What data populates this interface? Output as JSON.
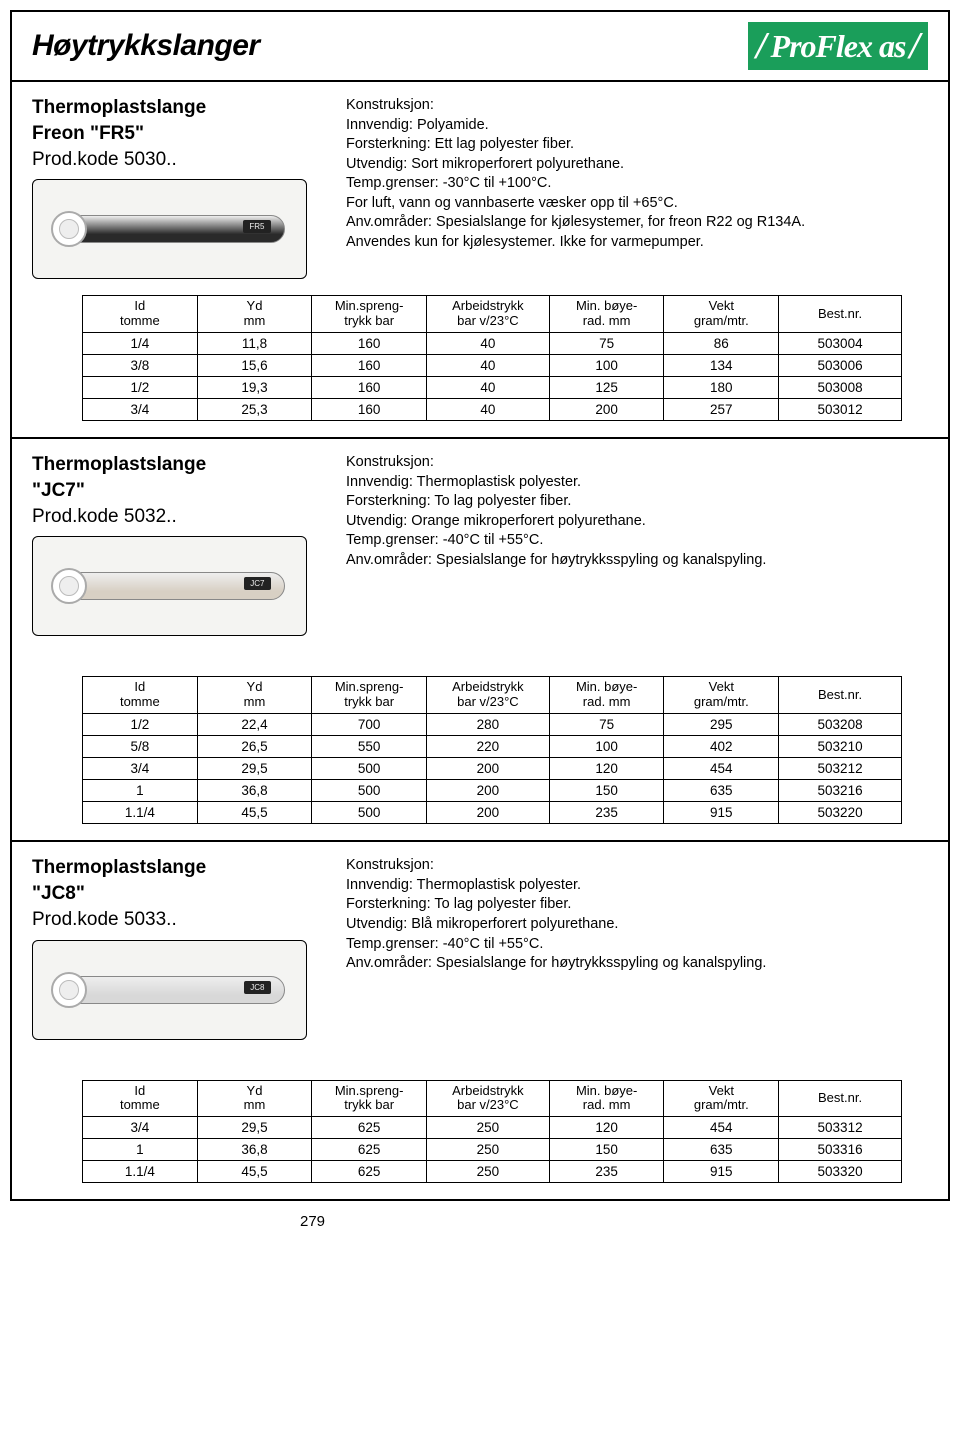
{
  "header": {
    "title": "Høytrykkslanger",
    "logo_text": "ProFlex as"
  },
  "products": [
    {
      "title": "Thermoplastslange",
      "subtitle": "Freon \"FR5\"",
      "code": "Prod.kode 5030..",
      "hose_label": "FR5",
      "hose_color": "#2a2a2a",
      "spec_head": "Konstruksjon:",
      "spec_lines": [
        "Innvendig: Polyamide.",
        "Forsterkning: Ett lag polyester fiber.",
        "Utvendig: Sort mikroperforert polyurethane.",
        "Temp.grenser: -30°C til +100°C.",
        "For luft, vann og vannbaserte væsker opp til +65°C.",
        "Anv.områder:  Spesialslange for kjølesystemer, for freon R22 og R134A.",
        "Anvendes kun for kjølesystemer.  Ikke for varmepumper."
      ],
      "table": {
        "headers": [
          "Id\ntomme",
          "Yd\nmm",
          "Min.spreng-\ntrykk bar",
          "Arbeidstrykk\nbar v/23°C",
          "Min. bøye-\nrad. mm",
          "Vekt\ngram/mtr.",
          "Best.nr."
        ],
        "widths": [
          "14%",
          "14%",
          "14%",
          "15%",
          "14%",
          "14%",
          "15%"
        ],
        "rows": [
          [
            "1/4",
            "11,8",
            "160",
            "40",
            "75",
            "86",
            "503004"
          ],
          [
            "3/8",
            "15,6",
            "160",
            "40",
            "100",
            "134",
            "503006"
          ],
          [
            "1/2",
            "19,3",
            "160",
            "40",
            "125",
            "180",
            "503008"
          ],
          [
            "3/4",
            "25,3",
            "160",
            "40",
            "200",
            "257",
            "503012"
          ]
        ]
      }
    },
    {
      "title": "Thermoplastslange",
      "subtitle": "\"JC7\"",
      "code": "Prod.kode 5032..",
      "hose_label": "JC7",
      "hose_color": "#d8d0c4",
      "spec_head": "Konstruksjon:",
      "spec_lines": [
        "Innvendig: Thermoplastisk polyester.",
        "Forsterkning:  To lag polyester fiber.",
        "Utvendig: Orange mikroperforert polyurethane.",
        "Temp.grenser: -40°C til +55°C.",
        "Anv.områder:  Spesialslange for høytrykksspyling og kanalspyling."
      ],
      "table": {
        "headers": [
          "Id\ntomme",
          "Yd\nmm",
          "Min.spreng-\ntrykk bar",
          "Arbeidstrykk\nbar v/23°C",
          "Min. bøye-\nrad. mm",
          "Vekt\ngram/mtr.",
          "Best.nr."
        ],
        "widths": [
          "14%",
          "14%",
          "14%",
          "15%",
          "14%",
          "14%",
          "15%"
        ],
        "rows": [
          [
            "1/2",
            "22,4",
            "700",
            "280",
            "75",
            "295",
            "503208"
          ],
          [
            "5/8",
            "26,5",
            "550",
            "220",
            "100",
            "402",
            "503210"
          ],
          [
            "3/4",
            "29,5",
            "500",
            "200",
            "120",
            "454",
            "503212"
          ],
          [
            "1",
            "36,8",
            "500",
            "200",
            "150",
            "635",
            "503216"
          ],
          [
            "1.1/4",
            "45,5",
            "500",
            "200",
            "235",
            "915",
            "503220"
          ]
        ]
      }
    },
    {
      "title": "Thermoplastslange",
      "subtitle": "\"JC8\"",
      "code": "Prod.kode 5033..",
      "hose_label": "JC8",
      "hose_color": "#d8d8d8",
      "spec_head": "Konstruksjon:",
      "spec_lines": [
        "Innvendig: Thermoplastisk polyester.",
        "Forsterkning:  To lag polyester fiber.",
        "Utvendig: Blå mikroperforert polyurethane.",
        "Temp.grenser: -40°C til +55°C.",
        "Anv.områder:  Spesialslange for høytrykksspyling og kanalspyling."
      ],
      "table": {
        "headers": [
          "Id\ntomme",
          "Yd\nmm",
          "Min.spreng-\ntrykk bar",
          "Arbeidstrykk\nbar v/23°C",
          "Min. bøye-\nrad. mm",
          "Vekt\ngram/mtr.",
          "Best.nr."
        ],
        "widths": [
          "14%",
          "14%",
          "14%",
          "15%",
          "14%",
          "14%",
          "15%"
        ],
        "rows": [
          [
            "3/4",
            "29,5",
            "625",
            "250",
            "120",
            "454",
            "503312"
          ],
          [
            "1",
            "36,8",
            "625",
            "250",
            "150",
            "635",
            "503316"
          ],
          [
            "1.1/4",
            "45,5",
            "625",
            "250",
            "235",
            "915",
            "503320"
          ]
        ]
      }
    }
  ],
  "page_number": "279"
}
